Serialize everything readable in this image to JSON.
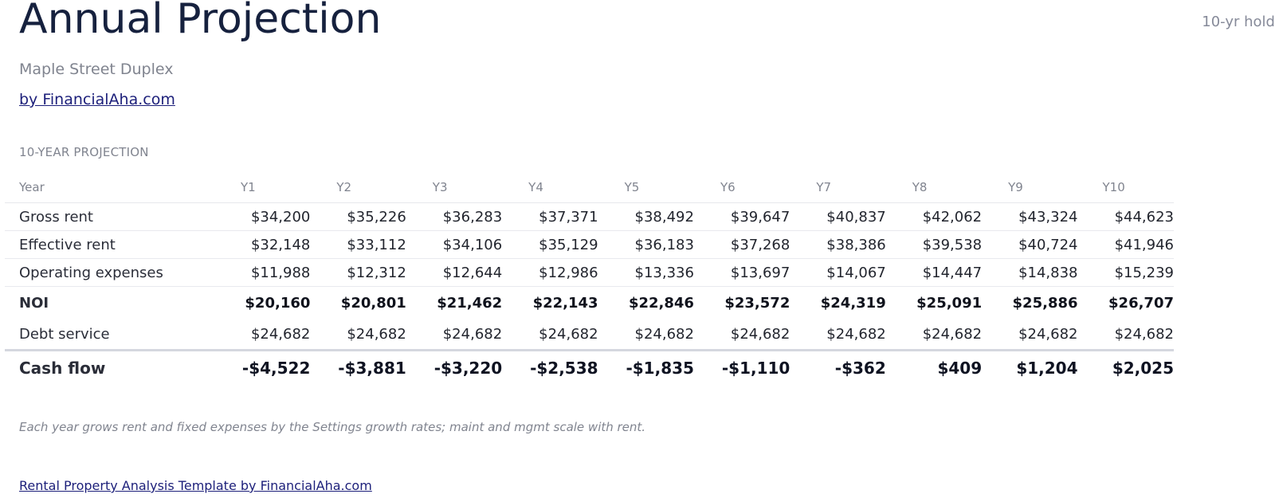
{
  "header": {
    "title": "Annual Projection",
    "hold_label": "10-yr hold",
    "subtitle": "Maple Street Duplex",
    "byline": "by FinancialAha.com"
  },
  "projection": {
    "section_label": "10-YEAR PROJECTION",
    "columns": [
      "Year",
      "Y1",
      "Y2",
      "Y3",
      "Y4",
      "Y5",
      "Y6",
      "Y7",
      "Y8",
      "Y9",
      "Y10"
    ],
    "rows": [
      {
        "label": "Gross rent",
        "values": [
          "$34,200",
          "$35,226",
          "$36,283",
          "$37,371",
          "$38,492",
          "$39,647",
          "$40,837",
          "$42,062",
          "$43,324",
          "$44,623"
        ]
      },
      {
        "label": "Effective rent",
        "values": [
          "$32,148",
          "$33,112",
          "$34,106",
          "$35,129",
          "$36,183",
          "$37,268",
          "$38,386",
          "$39,538",
          "$40,724",
          "$41,946"
        ]
      },
      {
        "label": "Operating expenses",
        "values": [
          "$11,988",
          "$12,312",
          "$12,644",
          "$12,986",
          "$13,336",
          "$13,697",
          "$14,067",
          "$14,447",
          "$14,838",
          "$15,239"
        ]
      },
      {
        "label": "NOI",
        "values": [
          "$20,160",
          "$20,801",
          "$21,462",
          "$22,143",
          "$22,846",
          "$23,572",
          "$24,319",
          "$25,091",
          "$25,886",
          "$26,707"
        ]
      },
      {
        "label": "Debt service",
        "values": [
          "$24,682",
          "$24,682",
          "$24,682",
          "$24,682",
          "$24,682",
          "$24,682",
          "$24,682",
          "$24,682",
          "$24,682",
          "$24,682"
        ]
      },
      {
        "label": "Cash flow",
        "values": [
          "-$4,522",
          "-$3,881",
          "-$3,220",
          "-$2,538",
          "-$1,835",
          "-$1,110",
          "-$362",
          "$409",
          "$1,204",
          "$2,025"
        ]
      }
    ],
    "note": "Each year grows rent and fixed expenses by the Settings growth rates; maint and mgmt scale with rent."
  },
  "footer": {
    "link": "Rental Property Analysis Template by FinancialAha.com"
  },
  "colors": {
    "title": "#16213e",
    "muted": "#80848f",
    "link": "#1c1f7a"
  }
}
